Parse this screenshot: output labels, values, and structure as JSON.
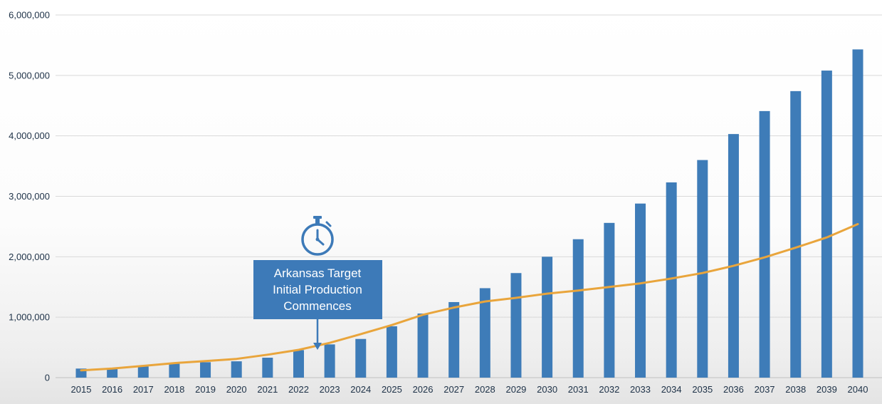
{
  "chart_data": {
    "type": "bar",
    "title": "",
    "categories": [
      "2015",
      "2016",
      "2017",
      "2018",
      "2019",
      "2020",
      "2021",
      "2022",
      "2023",
      "2024",
      "2025",
      "2026",
      "2027",
      "2028",
      "2029",
      "2030",
      "2031",
      "2032",
      "2033",
      "2034",
      "2035",
      "2036",
      "2037",
      "2038",
      "2039",
      "2040"
    ],
    "series": [
      {
        "name": "bar-series",
        "type": "bar",
        "color": "#3e7cb8",
        "values": [
          150000,
          160000,
          185000,
          230000,
          255000,
          270000,
          330000,
          455000,
          550000,
          640000,
          850000,
          1060000,
          1250000,
          1480000,
          1730000,
          2000000,
          2290000,
          2560000,
          2880000,
          3230000,
          3600000,
          4030000,
          4410000,
          4740000,
          5080000,
          5430000
        ]
      },
      {
        "name": "line-series",
        "type": "line",
        "color": "#e9a53c",
        "values": [
          120000,
          150000,
          195000,
          240000,
          275000,
          310000,
          380000,
          460000,
          575000,
          720000,
          870000,
          1040000,
          1160000,
          1260000,
          1320000,
          1390000,
          1440000,
          1500000,
          1560000,
          1640000,
          1730000,
          1850000,
          1990000,
          2150000,
          2320000,
          2540000
        ]
      }
    ],
    "xlabel": "",
    "ylabel": "",
    "ylim": [
      0,
      6000000
    ],
    "ytick_step": 1000000,
    "ytick_labels": [
      "0",
      "1,000,000",
      "2,000,000",
      "3,000,000",
      "4,000,000",
      "5,000,000",
      "6,000,000"
    ],
    "grid": true,
    "legend_position": "none",
    "gridline_color": "#d9d9d9",
    "axis_line_color": "#c0c0c0",
    "axis_label_color": "#1d3147"
  },
  "annotation": {
    "lines": [
      "Arkansas Target",
      "Initial Production",
      "Commences"
    ],
    "box_color": "#3d7ab8",
    "text_color": "#ffffff",
    "icon": "stopwatch-icon"
  }
}
